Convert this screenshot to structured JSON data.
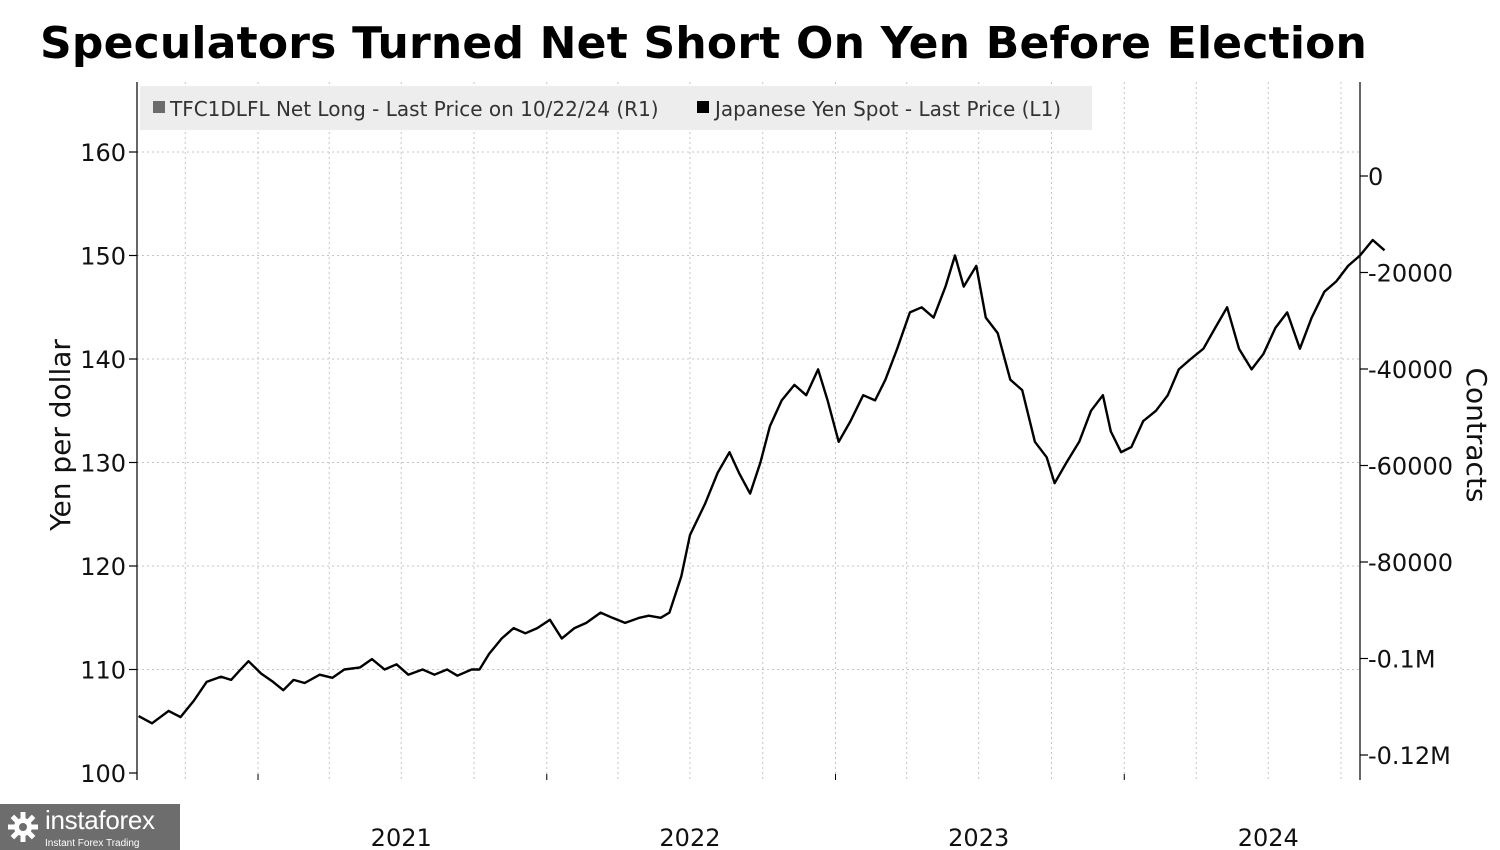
{
  "title": "Speculators Turned Net Short On Yen Before Election",
  "legend": {
    "bars_label": "TFC1DLFL Net Long - Last Price on 10/22/24 (R1)",
    "line_label": "Japanese Yen Spot - Last Price (L1)"
  },
  "watermark": {
    "brand": "instaforex",
    "tagline": "Instant Forex Trading"
  },
  "colors": {
    "line": "#000000",
    "bars": "#6b6b6b",
    "grid": "#c4c4c4",
    "legend_bg": "#ededed",
    "watermark_bg": "#6d6d6d"
  },
  "chart_data": {
    "type": "bar+line",
    "title": "Speculators Turned Net Short On Yen Before Election",
    "xlabel": "",
    "x_range": [
      "2020-08-01",
      "2024-10-25"
    ],
    "x_ticks": [
      "2021",
      "2022",
      "2023",
      "2024"
    ],
    "grid": true,
    "legend_position": "top-left",
    "left_axis": {
      "label": "Yen per dollar",
      "ylim": [
        100,
        165
      ],
      "ticks": [
        100,
        110,
        120,
        130,
        140,
        150,
        160
      ],
      "tick_labels": [
        "100",
        "110",
        "120",
        "130",
        "140",
        "150",
        "160"
      ]
    },
    "right_axis": {
      "label": "Contracts",
      "ylim": [
        -125000,
        20000
      ],
      "ticks": [
        0,
        -20000,
        -40000,
        -60000,
        -80000,
        -100000,
        -120000
      ],
      "tick_labels": [
        "0",
        "-20000",
        "-40000",
        "-60000",
        "-80000",
        "-0.1M",
        "-0.12M"
      ]
    },
    "series": [
      {
        "name": "Japanese Yen Spot - Last Price (L1)",
        "axis": "left",
        "type": "line",
        "points": [
          [
            "2020-08-03",
            105.5
          ],
          [
            "2020-08-20",
            104.8
          ],
          [
            "2020-09-10",
            106.0
          ],
          [
            "2020-09-25",
            105.4
          ],
          [
            "2020-10-12",
            107.0
          ],
          [
            "2020-10-28",
            108.8
          ],
          [
            "2020-11-15",
            109.3
          ],
          [
            "2020-11-28",
            109.0
          ],
          [
            "2020-12-10",
            110.0
          ],
          [
            "2020-12-20",
            110.8
          ],
          [
            "2021-01-05",
            109.6
          ],
          [
            "2021-01-20",
            108.8
          ],
          [
            "2021-02-02",
            108.0
          ],
          [
            "2021-02-15",
            109.0
          ],
          [
            "2021-03-01",
            108.7
          ],
          [
            "2021-03-20",
            109.5
          ],
          [
            "2021-04-05",
            109.2
          ],
          [
            "2021-04-20",
            110.0
          ],
          [
            "2021-05-10",
            110.2
          ],
          [
            "2021-05-25",
            111.0
          ],
          [
            "2021-06-10",
            110.0
          ],
          [
            "2021-06-25",
            110.5
          ],
          [
            "2021-07-10",
            109.5
          ],
          [
            "2021-07-28",
            110.0
          ],
          [
            "2021-08-12",
            109.5
          ],
          [
            "2021-08-28",
            110.0
          ],
          [
            "2021-09-10",
            109.4
          ],
          [
            "2021-09-28",
            110.0
          ],
          [
            "2021-10-08",
            110.0
          ],
          [
            "2021-10-20",
            111.5
          ],
          [
            "2021-11-05",
            113.0
          ],
          [
            "2021-11-20",
            114.0
          ],
          [
            "2021-12-05",
            113.5
          ],
          [
            "2021-12-20",
            114.0
          ],
          [
            "2022-01-05",
            114.8
          ],
          [
            "2022-01-20",
            113.0
          ],
          [
            "2022-02-05",
            114.0
          ],
          [
            "2022-02-20",
            114.5
          ],
          [
            "2022-03-10",
            115.5
          ],
          [
            "2022-03-25",
            115.0
          ],
          [
            "2022-04-10",
            114.5
          ],
          [
            "2022-04-28",
            115.0
          ],
          [
            "2022-05-10",
            115.2
          ],
          [
            "2022-05-25",
            115.0
          ],
          [
            "2022-06-05",
            115.5
          ],
          [
            "2022-06-20",
            119.0
          ],
          [
            "2022-07-01",
            123.0
          ],
          [
            "2022-07-20",
            126.0
          ],
          [
            "2022-08-05",
            129.0
          ],
          [
            "2022-08-20",
            131.0
          ],
          [
            "2022-09-01",
            129.0
          ],
          [
            "2022-09-15",
            127.0
          ],
          [
            "2022-09-28",
            130.0
          ],
          [
            "2022-10-10",
            133.5
          ],
          [
            "2022-10-25",
            136.0
          ],
          [
            "2022-11-10",
            137.5
          ],
          [
            "2022-11-25",
            136.5
          ],
          [
            "2022-12-10",
            139.0
          ],
          [
            "2022-12-22",
            136.0
          ],
          [
            "2023-01-05",
            132.0
          ],
          [
            "2023-01-20",
            134.0
          ],
          [
            "2023-02-05",
            136.5
          ],
          [
            "2023-02-20",
            136.0
          ],
          [
            "2023-03-05",
            138.0
          ],
          [
            "2023-03-20",
            141.0
          ],
          [
            "2023-04-05",
            144.5
          ],
          [
            "2023-04-20",
            145.0
          ],
          [
            "2023-05-05",
            144.0
          ],
          [
            "2023-05-20",
            147.0
          ],
          [
            "2023-06-01",
            150.0
          ],
          [
            "2023-06-12",
            147.0
          ],
          [
            "2023-06-28",
            149.0
          ],
          [
            "2023-07-10",
            144.0
          ],
          [
            "2023-07-25",
            142.5
          ],
          [
            "2023-08-10",
            138.0
          ],
          [
            "2023-08-25",
            137.0
          ],
          [
            "2023-09-10",
            132.0
          ],
          [
            "2023-09-25",
            130.5
          ],
          [
            "2023-10-05",
            128.0
          ],
          [
            "2023-10-20",
            130.0
          ],
          [
            "2023-11-05",
            132.0
          ],
          [
            "2023-11-20",
            135.0
          ],
          [
            "2023-12-05",
            136.5
          ],
          [
            "2023-12-15",
            133.0
          ],
          [
            "2023-12-28",
            131.0
          ],
          [
            "2024-01-10",
            131.5
          ],
          [
            "2024-01-25",
            134.0
          ],
          [
            "2024-02-10",
            135.0
          ],
          [
            "2024-02-25",
            136.5
          ],
          [
            "2024-03-10",
            139.0
          ],
          [
            "2024-03-25",
            140.0
          ],
          [
            "2024-04-10",
            141.0
          ],
          [
            "2024-04-25",
            143.0
          ],
          [
            "2024-05-10",
            145.0
          ],
          [
            "2024-05-25",
            141.0
          ],
          [
            "2024-06-10",
            139.0
          ],
          [
            "2024-06-25",
            140.5
          ],
          [
            "2024-07-10",
            143.0
          ],
          [
            "2024-07-25",
            144.5
          ],
          [
            "2024-08-10",
            141.0
          ],
          [
            "2024-08-25",
            144.0
          ],
          [
            "2024-09-10",
            146.5
          ],
          [
            "2024-09-25",
            147.5
          ],
          [
            "2024-10-10",
            149.0
          ],
          [
            "2024-10-25",
            150.0
          ],
          [
            "2024-11-10",
            151.5
          ],
          [
            "2024-11-25",
            150.5
          ]
        ]
      }
    ]
  }
}
